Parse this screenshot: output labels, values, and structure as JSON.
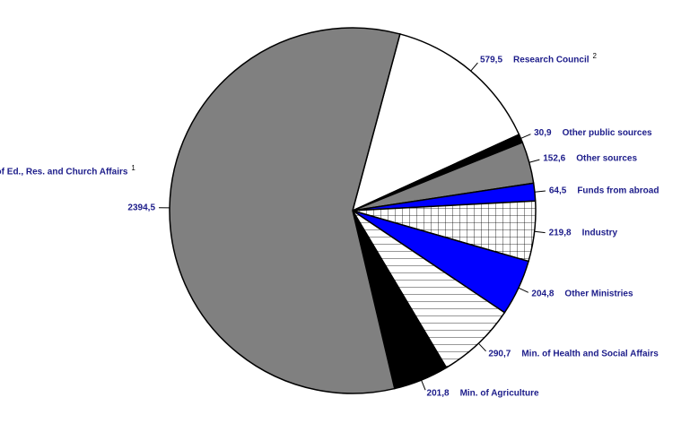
{
  "chart_data": {
    "type": "pie",
    "categories": [
      "Research Council",
      "Other public sources",
      "Other sources",
      "Funds from abroad",
      "Industry",
      "Other Ministries",
      "Min. of Health and Social Affairs",
      "Min. of Agriculture",
      "Min. of Ed., Res. and Church Affairs"
    ],
    "footnote_marks": [
      "2",
      null,
      null,
      null,
      null,
      null,
      null,
      null,
      "1"
    ],
    "values": [
      579.5,
      30.9,
      152.6,
      64.5,
      219.8,
      204.8,
      290.7,
      201.8,
      2394.5
    ],
    "value_labels": [
      "579,5",
      "30,9",
      "152,6",
      "64,5",
      "219,8",
      "204,8",
      "290,7",
      "201,8",
      "2394,5"
    ],
    "colors": [
      "#ffffff",
      "#000000",
      "#808080",
      "#0000ff",
      "#ffffff",
      "#0000ff",
      "#ffffff",
      "#000000",
      "#808080"
    ],
    "patterns": [
      null,
      null,
      null,
      null,
      "grid",
      null,
      "hlines",
      null,
      null
    ]
  }
}
